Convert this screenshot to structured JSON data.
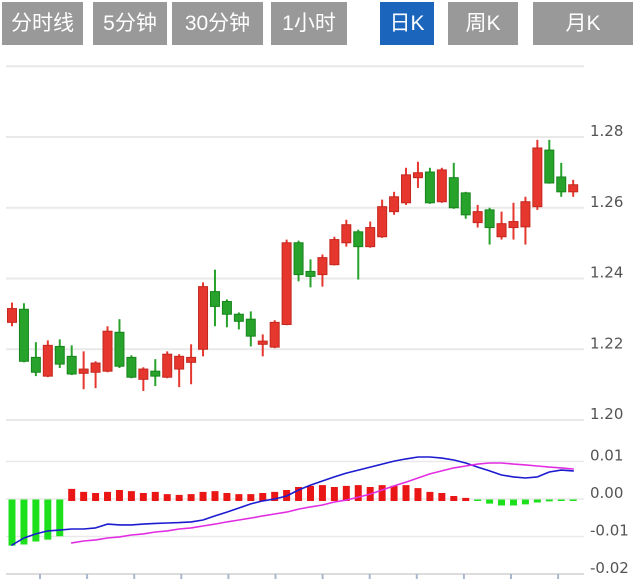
{
  "tabbar": {
    "items": [
      {
        "label": "分时线",
        "active": false
      },
      {
        "label": "5分钟",
        "active": false
      },
      {
        "label": "30分钟",
        "active": false
      },
      {
        "label": "1小时",
        "active": false
      },
      {
        "label": "日K",
        "active": true
      },
      {
        "label": "周K",
        "active": false
      },
      {
        "label": "月K",
        "active": false
      }
    ],
    "active_tab": "日K"
  },
  "colors": {
    "tab_bg": "#999999",
    "tab_active_bg": "#1b65bd",
    "tab_text": "#ffffff",
    "up": "#e5372e",
    "up_stroke": "#c4271f",
    "down": "#27a22b",
    "down_stroke": "#17851c",
    "macd_up": "#ea1616",
    "macd_down": "#1ce01c",
    "dif_line": "#1b1bd0",
    "dea_line": "#e22ee2",
    "grid": "#e9e9e9",
    "axis_label": "#545454",
    "x_axis": "#dcdcdc",
    "x_tick": "#a9b7cc"
  },
  "chart_data": {
    "type": "candlestick+macd",
    "legend_position": "none",
    "grid": true,
    "price_panel": {
      "ylabel": "",
      "y_ticks": [
        1.28,
        1.26,
        1.24,
        1.22,
        1.2
      ],
      "y_top_unlabeled_tick": 1.3,
      "candles": [
        {
          "o": 1.2276,
          "h": 1.2332,
          "l": 1.2265,
          "c": 1.2315
        },
        {
          "o": 1.2313,
          "h": 1.233,
          "l": 1.2163,
          "c": 1.2166
        },
        {
          "o": 1.2177,
          "h": 1.222,
          "l": 1.2124,
          "c": 1.2135
        },
        {
          "o": 1.2124,
          "h": 1.2225,
          "l": 1.2121,
          "c": 1.2211
        },
        {
          "o": 1.2208,
          "h": 1.2228,
          "l": 1.2147,
          "c": 1.2158
        },
        {
          "o": 1.218,
          "h": 1.2211,
          "l": 1.2127,
          "c": 1.213
        },
        {
          "o": 1.2132,
          "h": 1.2194,
          "l": 1.2087,
          "c": 1.2144
        },
        {
          "o": 1.2135,
          "h": 1.2166,
          "l": 1.209,
          "c": 1.2161
        },
        {
          "o": 1.2138,
          "h": 1.2265,
          "l": 1.2135,
          "c": 1.2251
        },
        {
          "o": 1.2248,
          "h": 1.2285,
          "l": 1.2147,
          "c": 1.2152
        },
        {
          "o": 1.2177,
          "h": 1.2183,
          "l": 1.2118,
          "c": 1.2121
        },
        {
          "o": 1.2115,
          "h": 1.2149,
          "l": 1.2082,
          "c": 1.2144
        },
        {
          "o": 1.2138,
          "h": 1.2172,
          "l": 1.2096,
          "c": 1.2124
        },
        {
          "o": 1.2121,
          "h": 1.2194,
          "l": 1.2118,
          "c": 1.2186
        },
        {
          "o": 1.2144,
          "h": 1.2186,
          "l": 1.2093,
          "c": 1.218
        },
        {
          "o": 1.2163,
          "h": 1.2214,
          "l": 1.2101,
          "c": 1.2177
        },
        {
          "o": 1.22,
          "h": 1.2389,
          "l": 1.218,
          "c": 1.2377
        },
        {
          "o": 1.2363,
          "h": 1.2425,
          "l": 1.2265,
          "c": 1.2321
        },
        {
          "o": 1.2335,
          "h": 1.2341,
          "l": 1.2262,
          "c": 1.2299
        },
        {
          "o": 1.2299,
          "h": 1.2304,
          "l": 1.2256,
          "c": 1.2279
        },
        {
          "o": 1.2285,
          "h": 1.2307,
          "l": 1.2208,
          "c": 1.2237
        },
        {
          "o": 1.2214,
          "h": 1.2242,
          "l": 1.218,
          "c": 1.2223
        },
        {
          "o": 1.2206,
          "h": 1.2282,
          "l": 1.2203,
          "c": 1.2276
        },
        {
          "o": 1.227,
          "h": 1.251,
          "l": 1.2268,
          "c": 1.2501
        },
        {
          "o": 1.2501,
          "h": 1.2507,
          "l": 1.2392,
          "c": 1.2411
        },
        {
          "o": 1.242,
          "h": 1.2454,
          "l": 1.2375,
          "c": 1.2406
        },
        {
          "o": 1.2411,
          "h": 1.2468,
          "l": 1.2377,
          "c": 1.2459
        },
        {
          "o": 1.2439,
          "h": 1.2518,
          "l": 1.2437,
          "c": 1.251
        },
        {
          "o": 1.2501,
          "h": 1.2566,
          "l": 1.249,
          "c": 1.2552
        },
        {
          "o": 1.2532,
          "h": 1.2538,
          "l": 1.2397,
          "c": 1.249
        },
        {
          "o": 1.249,
          "h": 1.2561,
          "l": 1.2487,
          "c": 1.2544
        },
        {
          "o": 1.2518,
          "h": 1.2623,
          "l": 1.2515,
          "c": 1.2603
        },
        {
          "o": 1.2589,
          "h": 1.2645,
          "l": 1.258,
          "c": 1.2631
        },
        {
          "o": 1.2614,
          "h": 1.2713,
          "l": 1.2608,
          "c": 1.2693
        },
        {
          "o": 1.2685,
          "h": 1.273,
          "l": 1.2656,
          "c": 1.2699
        },
        {
          "o": 1.2701,
          "h": 1.2713,
          "l": 1.2611,
          "c": 1.2614
        },
        {
          "o": 1.2617,
          "h": 1.2713,
          "l": 1.2614,
          "c": 1.2707
        },
        {
          "o": 1.2685,
          "h": 1.2727,
          "l": 1.2597,
          "c": 1.26
        },
        {
          "o": 1.2642,
          "h": 1.2645,
          "l": 1.2569,
          "c": 1.258
        },
        {
          "o": 1.2558,
          "h": 1.2608,
          "l": 1.2544,
          "c": 1.2589
        },
        {
          "o": 1.2594,
          "h": 1.26,
          "l": 1.2496,
          "c": 1.2544
        },
        {
          "o": 1.2518,
          "h": 1.2589,
          "l": 1.251,
          "c": 1.2555
        },
        {
          "o": 1.2544,
          "h": 1.2614,
          "l": 1.251,
          "c": 1.2561
        },
        {
          "o": 1.2546,
          "h": 1.2631,
          "l": 1.2496,
          "c": 1.2617
        },
        {
          "o": 1.2603,
          "h": 1.2792,
          "l": 1.2594,
          "c": 1.2769
        },
        {
          "o": 1.2763,
          "h": 1.2792,
          "l": 1.2668,
          "c": 1.267
        },
        {
          "o": 1.2687,
          "h": 1.2727,
          "l": 1.2631,
          "c": 1.2645
        },
        {
          "o": 1.2645,
          "h": 1.2679,
          "l": 1.2631,
          "c": 1.2665
        }
      ]
    },
    "macd_panel": {
      "y_ticks": [
        0.01,
        0.0,
        -0.01,
        -0.02
      ],
      "hist": [
        -0.0123,
        -0.012,
        -0.0112,
        -0.0107,
        -0.0098,
        0.0027,
        0.0019,
        0.0016,
        0.0019,
        0.0024,
        0.0021,
        0.0016,
        0.0019,
        0.0013,
        0.0011,
        0.0013,
        0.0019,
        0.0021,
        0.0016,
        0.0013,
        0.0013,
        0.0016,
        0.0019,
        0.0024,
        0.0032,
        0.0035,
        0.0037,
        0.0032,
        0.0035,
        0.0037,
        0.0032,
        0.0037,
        0.0035,
        0.0037,
        0.0029,
        0.0019,
        0.0016,
        0.0008,
        0.0003,
        -0.0003,
        -0.0011,
        -0.0016,
        -0.0016,
        -0.0013,
        -0.0008,
        -0.0005,
        -0.0004,
        -0.0004
      ],
      "dif": [
        -0.0123,
        -0.0104,
        -0.0093,
        -0.0085,
        -0.0083,
        -0.008,
        -0.008,
        -0.0077,
        -0.0067,
        -0.0069,
        -0.0069,
        -0.0067,
        -0.0065,
        -0.0064,
        -0.0063,
        -0.0061,
        -0.0056,
        -0.0045,
        -0.0035,
        -0.0024,
        -0.0013,
        -0.0005,
        0.0,
        0.0008,
        0.0024,
        0.0037,
        0.0048,
        0.0059,
        0.0069,
        0.0077,
        0.0085,
        0.0093,
        0.0101,
        0.0107,
        0.0112,
        0.0112,
        0.0109,
        0.0104,
        0.0096,
        0.0085,
        0.0075,
        0.0064,
        0.0059,
        0.0056,
        0.0059,
        0.0072,
        0.0077,
        0.0075
      ],
      "dea": [
        null,
        null,
        null,
        null,
        null,
        -0.0117,
        -0.0112,
        -0.0109,
        -0.0104,
        -0.0101,
        -0.0096,
        -0.0093,
        -0.0088,
        -0.0085,
        -0.008,
        -0.0077,
        -0.0072,
        -0.0067,
        -0.0061,
        -0.0056,
        -0.0051,
        -0.0045,
        -0.004,
        -0.0035,
        -0.0027,
        -0.0021,
        -0.0016,
        -0.0008,
        -0.0003,
        0.0005,
        0.0013,
        0.0024,
        0.0035,
        0.0045,
        0.0056,
        0.0067,
        0.0075,
        0.0083,
        0.0088,
        0.0093,
        0.0096,
        0.0096,
        0.0093,
        0.0091,
        0.0088,
        0.0085,
        0.0083,
        0.008
      ]
    }
  }
}
